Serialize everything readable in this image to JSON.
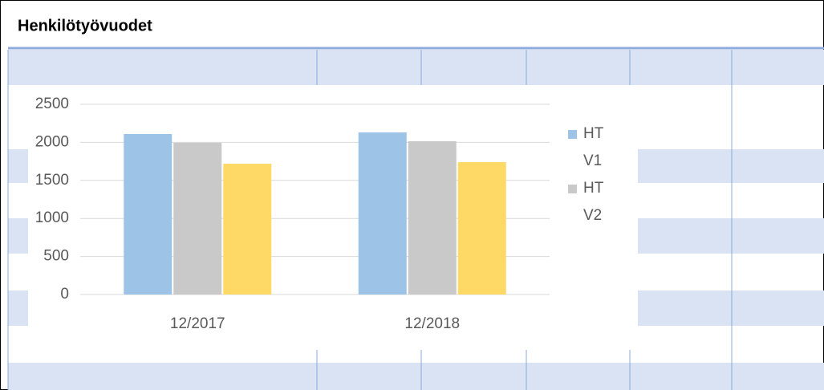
{
  "sheet_title": "Henkilötyövuodet",
  "chart_data": {
    "type": "bar",
    "categories": [
      "12/2017",
      "12/2018"
    ],
    "series": [
      {
        "name": "HT V1",
        "color": "#9dc3e6",
        "values": [
          2110,
          2131
        ]
      },
      {
        "name": "HT V2",
        "color": "#c9c9c9",
        "values": [
          1994,
          2015
        ]
      },
      {
        "color": "#ffd966",
        "values": [
          1719,
          1740
        ]
      }
    ],
    "ylim": [
      0,
      2500
    ],
    "yticks": [
      0,
      500,
      1000,
      1500,
      2000,
      2500
    ],
    "grid": true,
    "legend": "right"
  }
}
